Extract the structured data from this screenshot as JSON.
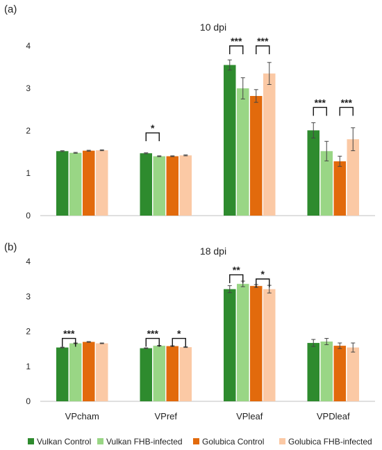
{
  "colors": {
    "vulkan_control": "#2e8b2e",
    "vulkan_fhb": "#99d685",
    "golubica_control": "#e26a0c",
    "golubica_fhb": "#fbc9a5",
    "axis": "#bfbfbf",
    "error_bar": "#444444"
  },
  "legend": {
    "position": "bottom",
    "items": [
      {
        "label": "Vulkan Control",
        "color_key": "vulkan_control"
      },
      {
        "label": "Vulkan FHB-infected",
        "color_key": "vulkan_fhb"
      },
      {
        "label": "Golubica Control",
        "color_key": "golubica_control"
      },
      {
        "label": "Golubica FHB-infected",
        "color_key": "golubica_fhb"
      }
    ]
  },
  "chart_data": [
    {
      "type": "bar",
      "panel_label": "(a)",
      "title": "10 dpi",
      "categories": [
        "VPcham",
        "VPref",
        "VPleaf",
        "VPDleaf"
      ],
      "show_category_labels": false,
      "ylim": [
        0,
        4
      ],
      "yticks": [
        "0",
        "1",
        "2",
        "3",
        "4"
      ],
      "series": [
        {
          "name": "Vulkan Control",
          "color_key": "vulkan_control",
          "values": [
            1.52,
            1.47,
            3.55,
            2.01
          ],
          "errors": [
            0.01,
            0.01,
            0.12,
            0.18
          ]
        },
        {
          "name": "Vulkan FHB-infected",
          "color_key": "vulkan_fhb",
          "values": [
            1.48,
            1.4,
            3.0,
            1.52
          ],
          "errors": [
            0.01,
            0.01,
            0.25,
            0.23
          ]
        },
        {
          "name": "Golubica Control",
          "color_key": "golubica_control",
          "values": [
            1.53,
            1.4,
            2.82,
            1.28
          ],
          "errors": [
            0.01,
            0.01,
            0.15,
            0.12
          ]
        },
        {
          "name": "Golubica FHB-infected",
          "color_key": "golubica_fhb",
          "values": [
            1.54,
            1.42,
            3.35,
            1.8
          ],
          "errors": [
            0.01,
            0.01,
            0.26,
            0.27
          ]
        }
      ],
      "significance": [
        {
          "category": 1,
          "from": 0,
          "to": 1,
          "label": "*",
          "y": 1.95
        },
        {
          "category": 2,
          "from": 0,
          "to": 1,
          "label": "***",
          "y": 4.0
        },
        {
          "category": 2,
          "from": 2,
          "to": 3,
          "label": "***",
          "y": 4.0
        },
        {
          "category": 3,
          "from": 0,
          "to": 1,
          "label": "***",
          "y": 2.55
        },
        {
          "category": 3,
          "from": 2,
          "to": 3,
          "label": "***",
          "y": 2.55
        }
      ]
    },
    {
      "type": "bar",
      "panel_label": "(b)",
      "title": "18 dpi",
      "categories": [
        "VPcham",
        "VPref",
        "VPleaf",
        "VPDleaf"
      ],
      "show_category_labels": true,
      "ylim": [
        0,
        4
      ],
      "yticks": [
        "0",
        "1",
        "2",
        "3",
        "4"
      ],
      "series": [
        {
          "name": "Vulkan Control",
          "color_key": "vulkan_control",
          "values": [
            1.54,
            1.52,
            3.21,
            1.67
          ],
          "errors": [
            0.01,
            0.01,
            0.1,
            0.1
          ]
        },
        {
          "name": "Vulkan FHB-infected",
          "color_key": "vulkan_fhb",
          "values": [
            1.66,
            1.59,
            3.36,
            1.71
          ],
          "errors": [
            0.01,
            0.01,
            0.08,
            0.09
          ]
        },
        {
          "name": "Golubica Control",
          "color_key": "golubica_control",
          "values": [
            1.7,
            1.58,
            3.3,
            1.59
          ],
          "errors": [
            0.01,
            0.01,
            0.04,
            0.08
          ]
        },
        {
          "name": "Golubica FHB-infected",
          "color_key": "golubica_fhb",
          "values": [
            1.66,
            1.55,
            3.21,
            1.54
          ],
          "errors": [
            0.01,
            0.01,
            0.11,
            0.13
          ]
        }
      ],
      "significance": [
        {
          "category": 0,
          "from": 0,
          "to": 1,
          "label": "***",
          "y": 1.8
        },
        {
          "category": 1,
          "from": 0,
          "to": 1,
          "label": "***",
          "y": 1.8
        },
        {
          "category": 1,
          "from": 2,
          "to": 3,
          "label": "*",
          "y": 1.8
        },
        {
          "category": 2,
          "from": 0,
          "to": 1,
          "label": "**",
          "y": 3.62
        },
        {
          "category": 2,
          "from": 2,
          "to": 3,
          "label": "*",
          "y": 3.5
        }
      ]
    }
  ]
}
